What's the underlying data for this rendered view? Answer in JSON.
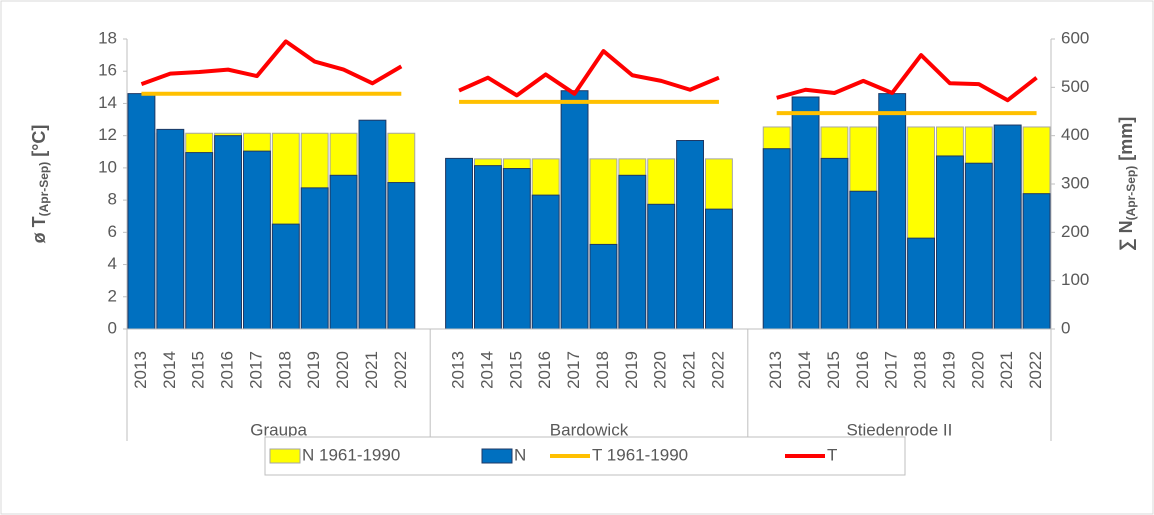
{
  "chart_data": {
    "type": "bar-line-combo",
    "ylabel": "ø T",
    "ylabel_sub": "(Apr-Sep)",
    "ylabel_unit": "[°C]",
    "y2label": "∑ N",
    "y2label_sub": "(Apr-Sep)",
    "y2label_unit": "[mm]",
    "groups": [
      {
        "name": "Graupa",
        "categories": [
          "2013",
          "2014",
          "2015",
          "2016",
          "2017",
          "2018",
          "2019",
          "2020",
          "2021",
          "2022"
        ]
      },
      {
        "name": "Bardowick",
        "categories": [
          "2013",
          "2014",
          "2015",
          "2016",
          "2017",
          "2018",
          "2019",
          "2020",
          "2021",
          "2022"
        ]
      },
      {
        "name": "Stiedenrode II",
        "categories": [
          "2013",
          "2014",
          "2015",
          "2016",
          "2017",
          "2018",
          "2019",
          "2020",
          "2021",
          "2022"
        ]
      }
    ],
    "series": [
      {
        "name": "N 1961-1990",
        "kind": "bar",
        "axis": "y2",
        "color": "#ffff00",
        "values": [
          [
            405,
            405,
            405,
            405,
            405,
            405,
            405,
            405,
            405,
            405
          ],
          [
            352,
            352,
            352,
            352,
            352,
            352,
            352,
            352,
            352,
            352
          ],
          [
            418,
            418,
            418,
            418,
            418,
            418,
            418,
            418,
            418,
            418
          ]
        ]
      },
      {
        "name": "N",
        "kind": "bar",
        "axis": "y2",
        "color": "#0070c0",
        "values": [
          [
            487,
            413,
            365,
            400,
            368,
            217,
            292,
            318,
            432,
            303
          ],
          [
            353,
            338,
            332,
            277,
            493,
            175,
            318,
            258,
            390,
            248
          ],
          [
            373,
            480,
            353,
            285,
            487,
            188,
            358,
            343,
            422,
            280
          ]
        ]
      },
      {
        "name": "T 1961-1990",
        "kind": "line",
        "axis": "y",
        "color": "#ffc000",
        "values": [
          [
            14.6,
            14.6,
            14.6,
            14.6,
            14.6,
            14.6,
            14.6,
            14.6,
            14.6,
            14.6
          ],
          [
            14.1,
            14.1,
            14.1,
            14.1,
            14.1,
            14.1,
            14.1,
            14.1,
            14.1,
            14.1
          ],
          [
            13.4,
            13.4,
            13.4,
            13.4,
            13.4,
            13.4,
            13.4,
            13.4,
            13.4,
            13.4
          ]
        ]
      },
      {
        "name": "T",
        "kind": "line",
        "axis": "y",
        "color": "#ff0000",
        "values": [
          [
            15.2,
            15.85,
            15.95,
            16.1,
            15.7,
            17.85,
            16.6,
            16.1,
            15.25,
            16.3
          ],
          [
            14.8,
            15.6,
            14.5,
            15.8,
            14.6,
            17.25,
            15.75,
            15.4,
            14.85,
            15.6
          ],
          [
            14.35,
            14.85,
            14.65,
            15.4,
            14.65,
            17.0,
            15.25,
            15.2,
            14.2,
            15.6
          ]
        ]
      }
    ],
    "ylim": [
      0,
      18
    ],
    "yticks": [
      0,
      2,
      4,
      6,
      8,
      10,
      12,
      14,
      16,
      18
    ],
    "y2lim": [
      0,
      600
    ],
    "y2ticks": [
      0,
      100,
      200,
      300,
      400,
      500,
      600
    ],
    "legend": "bottom"
  }
}
